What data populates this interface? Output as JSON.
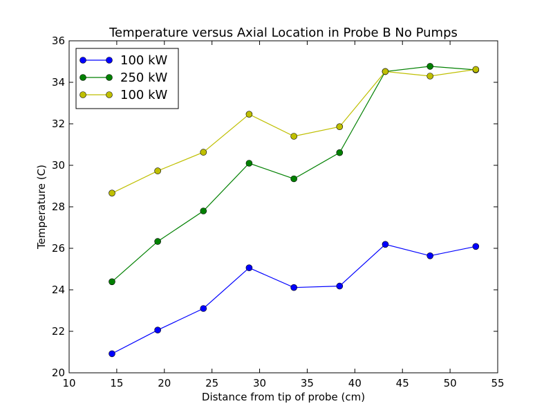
{
  "chart_data": {
    "type": "line",
    "title": "Temperature versus Axial Location in Probe B No Pumps",
    "xlabel": "Distance from tip of probe (cm)",
    "ylabel": "Temperature (C)",
    "xlim": [
      10,
      55
    ],
    "ylim": [
      20,
      36
    ],
    "xticks": [
      10,
      15,
      20,
      25,
      30,
      35,
      40,
      45,
      50,
      55
    ],
    "yticks": [
      20,
      22,
      24,
      26,
      28,
      30,
      32,
      34,
      36
    ],
    "grid": false,
    "legend_position": "top-left",
    "x": [
      14.5,
      19.3,
      24.1,
      28.9,
      33.6,
      38.4,
      43.2,
      47.9,
      52.7
    ],
    "series": [
      {
        "name": "100 kW",
        "color": "#0000ff",
        "values": [
          20.92,
          22.06,
          23.1,
          25.06,
          24.11,
          24.18,
          26.19,
          25.64,
          26.09
        ]
      },
      {
        "name": "250 kW",
        "color": "#008000",
        "values": [
          24.39,
          26.33,
          27.8,
          30.1,
          29.35,
          30.61,
          34.52,
          34.77,
          34.6
        ]
      },
      {
        "name": "100 kW",
        "color": "#bfbf00",
        "values": [
          28.66,
          29.73,
          30.63,
          32.46,
          31.4,
          31.86,
          34.52,
          34.3,
          34.62
        ]
      }
    ]
  }
}
